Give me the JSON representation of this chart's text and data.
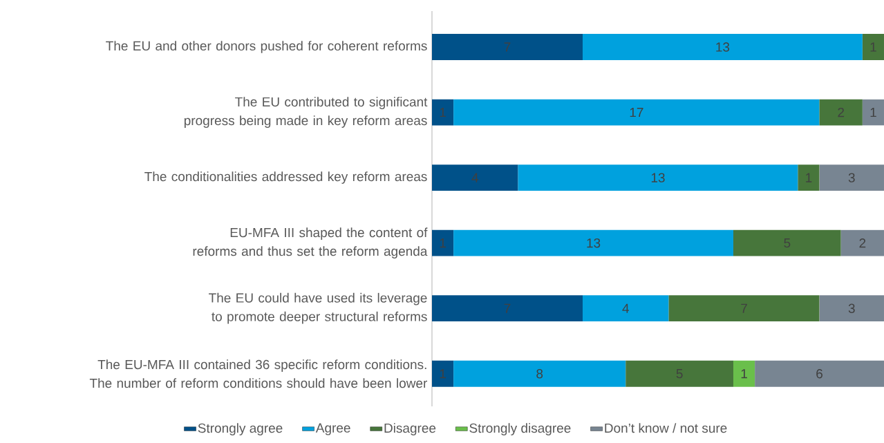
{
  "chart_data": {
    "type": "bar",
    "orientation": "horizontal",
    "stacked": true,
    "data_labels": true,
    "legend": "bottom",
    "categories": [
      "The EU and other donors pushed for coherent reforms",
      "The EU contributed to significant progress being made in key reform areas",
      "The conditionalities addressed key reform areas",
      "EU-MFA III shaped the content of reforms and thus set the reform agenda",
      "The EU could have used its leverage to promote deeper structural reforms",
      "The EU-MFA III contained 36 specific reform conditions. The number of reform conditions should have been lower"
    ],
    "series": [
      {
        "name": "Strongly agree",
        "color": "#005189",
        "values": [
          7,
          1,
          4,
          1,
          7,
          1
        ]
      },
      {
        "name": "Agree",
        "color": "#00a1de",
        "values": [
          13,
          17,
          13,
          13,
          4,
          8
        ]
      },
      {
        "name": "Disagree",
        "color": "#47763b",
        "values": [
          1,
          2,
          1,
          5,
          7,
          5
        ]
      },
      {
        "name": "Strongly disagree",
        "color": "#6abf4b",
        "values": [
          null,
          null,
          null,
          null,
          null,
          1
        ]
      },
      {
        "name": "Don’t know / not sure",
        "color": "#788592",
        "values": [
          null,
          1,
          3,
          2,
          3,
          6
        ]
      }
    ]
  }
}
